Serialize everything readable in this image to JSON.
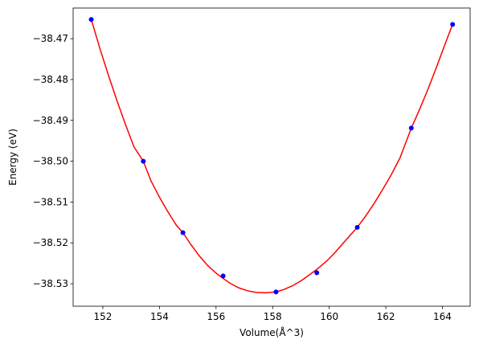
{
  "chart_data": {
    "type": "scatter",
    "title": "",
    "xlabel": "Volume(Å^3)",
    "ylabel": "Energy (eV)",
    "xlim": [
      150.95,
      164.98
    ],
    "ylim": [
      -38.5355,
      -38.4625
    ],
    "xticks": [
      152,
      154,
      156,
      158,
      160,
      162,
      164
    ],
    "xtick_labels": [
      "152",
      "154",
      "156",
      "158",
      "160",
      "162",
      "164"
    ],
    "yticks": [
      -38.47,
      -38.48,
      -38.49,
      -38.5,
      -38.51,
      -38.52,
      -38.53
    ],
    "ytick_labels": [
      "−38.47",
      "−38.48",
      "−38.49",
      "−38.50",
      "−38.51",
      "−38.52",
      "−38.53"
    ],
    "grid": false,
    "series": [
      {
        "kind": "points",
        "color": "#0000ff",
        "x": [
          151.59,
          153.43,
          154.83,
          156.25,
          158.12,
          159.56,
          160.99,
          162.9,
          164.36
        ],
        "y": [
          -38.4653,
          -38.5,
          -38.5175,
          -38.5281,
          -38.532,
          -38.5273,
          -38.5162,
          -38.4919,
          -38.4665
        ]
      },
      {
        "kind": "fit-curve",
        "color": "#ff0000",
        "x": [
          151.59,
          151.9,
          152.2,
          152.5,
          152.8,
          153.1,
          153.43,
          153.7,
          154.0,
          154.3,
          154.6,
          154.83,
          155.1,
          155.4,
          155.7,
          156.0,
          156.25,
          156.5,
          156.8,
          157.1,
          157.4,
          157.75,
          158.12,
          158.4,
          158.7,
          159.0,
          159.3,
          159.56,
          159.9,
          160.2,
          160.5,
          160.99,
          161.3,
          161.6,
          161.9,
          162.2,
          162.5,
          162.9,
          163.2,
          163.5,
          163.8,
          164.1,
          164.36
        ],
        "y": [
          -38.4653,
          -38.4725,
          -38.479,
          -38.4852,
          -38.491,
          -38.4965,
          -38.5,
          -38.5048,
          -38.5088,
          -38.5124,
          -38.5157,
          -38.5175,
          -38.5203,
          -38.5231,
          -38.5255,
          -38.5274,
          -38.5287,
          -38.5299,
          -38.531,
          -38.5317,
          -38.5321,
          -38.5322,
          -38.532,
          -38.5314,
          -38.5305,
          -38.5293,
          -38.5278,
          -38.5265,
          -38.5245,
          -38.5224,
          -38.52,
          -38.5162,
          -38.5133,
          -38.5102,
          -38.5068,
          -38.5032,
          -38.4992,
          -38.4919,
          -38.4872,
          -38.4822,
          -38.4768,
          -38.4712,
          -38.4665
        ]
      }
    ]
  }
}
